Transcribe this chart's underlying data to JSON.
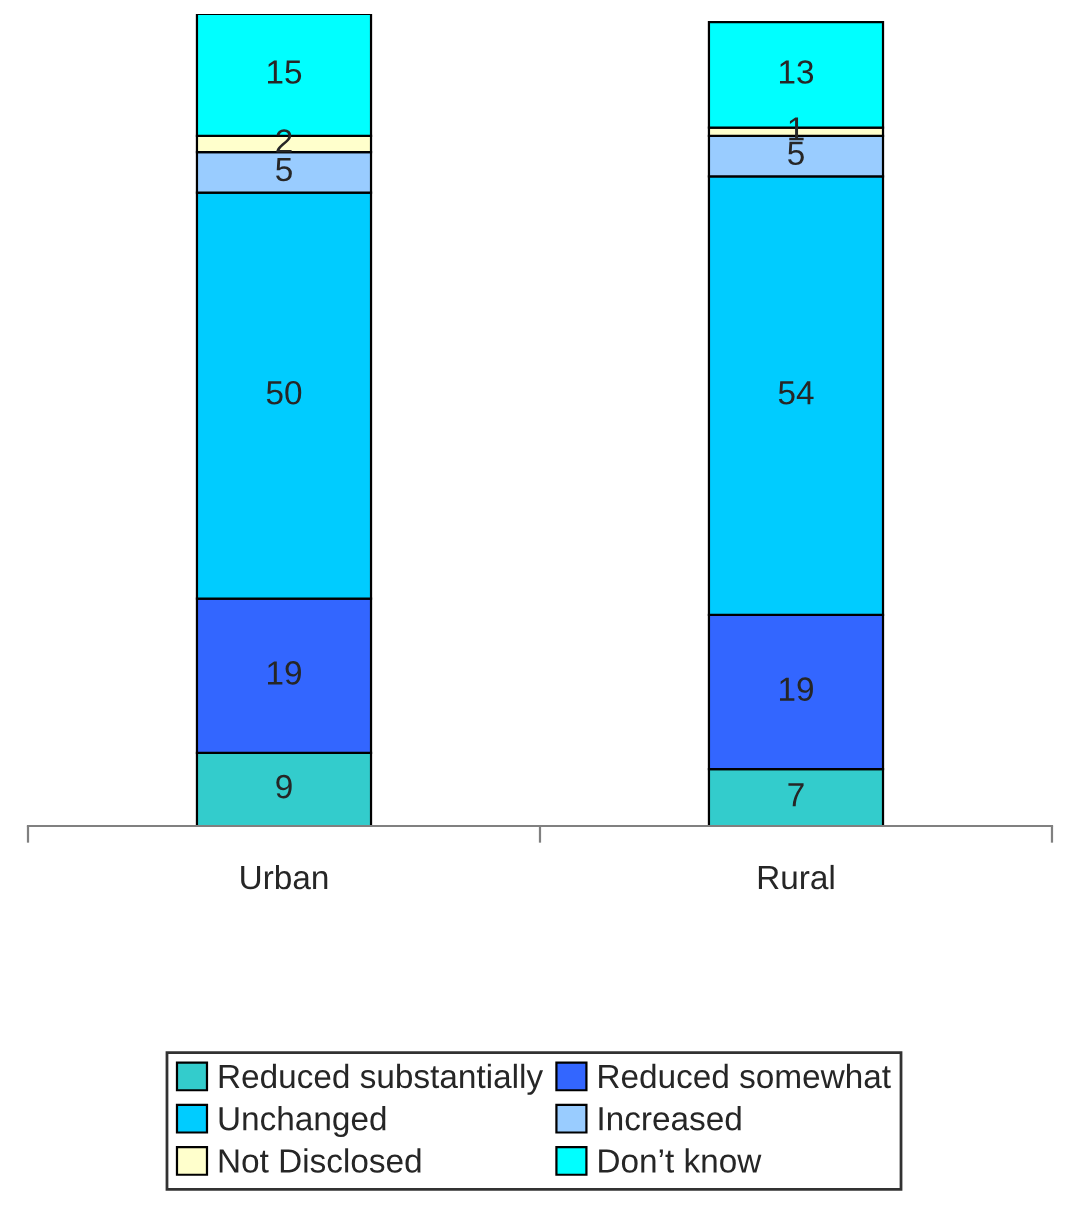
{
  "chart_data": {
    "type": "bar",
    "stacked": true,
    "categories": [
      "Urban",
      "Rural"
    ],
    "series": [
      {
        "name": "Reduced substantially",
        "color": "#33cccc",
        "values": [
          9,
          7
        ]
      },
      {
        "name": "Reduced somewhat",
        "color": "#3366ff",
        "values": [
          19,
          19
        ]
      },
      {
        "name": "Unchanged",
        "color": "#00ccff",
        "values": [
          50,
          54
        ]
      },
      {
        "name": "Increased",
        "color": "#99ccff",
        "values": [
          5,
          5
        ]
      },
      {
        "name": "Not Disclosed",
        "color": "#ffffcc",
        "values": [
          2,
          1
        ]
      },
      {
        "name": "Don’t know",
        "color": "#00ffff",
        "values": [
          15,
          13
        ]
      }
    ],
    "ylim": [
      0,
      100
    ],
    "tick_labels": "x",
    "data_labels": true,
    "legend": "bottom",
    "grid": false
  }
}
